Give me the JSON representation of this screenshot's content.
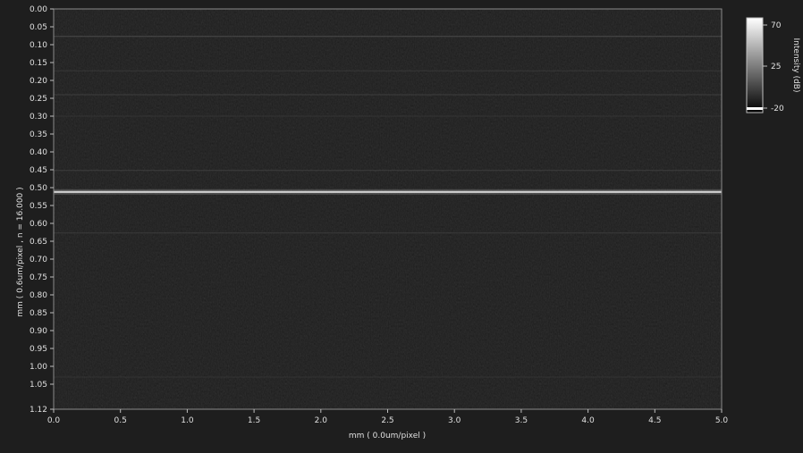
{
  "chart_data": {
    "type": "heatmap",
    "title": "",
    "xlabel": "mm  ( 0.0um/pixel )",
    "ylabel": "mm   ( 0.6um/pixel ,  n = 16.000 )",
    "xlim": [
      0.0,
      5.0
    ],
    "ylim": [
      0.0,
      1.12
    ],
    "y_inverted": true,
    "x_ticks": [
      "0.0",
      "0.5",
      "1.0",
      "1.5",
      "2.0",
      "2.5",
      "3.0",
      "3.5",
      "4.0",
      "4.5",
      "5.0"
    ],
    "y_ticks": [
      "0.00",
      "0.05",
      "0.10",
      "0.15",
      "0.20",
      "0.25",
      "0.30",
      "0.35",
      "0.40",
      "0.45",
      "0.50",
      "0.55",
      "0.60",
      "0.65",
      "0.70",
      "0.75",
      "0.80",
      "0.85",
      "0.90",
      "0.95",
      "1.00",
      "1.05",
      "1.12"
    ],
    "colorbar": {
      "label": "Intensity (dB)",
      "min": -20,
      "max": 70,
      "ticks": [
        "70",
        "25",
        "-20"
      ],
      "colormap": "grayscale"
    },
    "features": [
      {
        "depth_mm": 0.077,
        "intensity": 0.22
      },
      {
        "depth_mm": 0.173,
        "intensity": 0.1
      },
      {
        "depth_mm": 0.24,
        "intensity": 0.14
      },
      {
        "depth_mm": 0.3,
        "intensity": 0.08
      },
      {
        "depth_mm": 0.452,
        "intensity": 0.14
      },
      {
        "depth_mm": 0.512,
        "intensity": 0.85
      },
      {
        "depth_mm": 0.627,
        "intensity": 0.12
      },
      {
        "depth_mm": 1.03,
        "intensity": 0.07
      }
    ]
  },
  "colors": {
    "background": "#1e1e1e",
    "plot_background": "#151515",
    "axis": "#bfbfbf",
    "text": "#e0e0e0"
  }
}
